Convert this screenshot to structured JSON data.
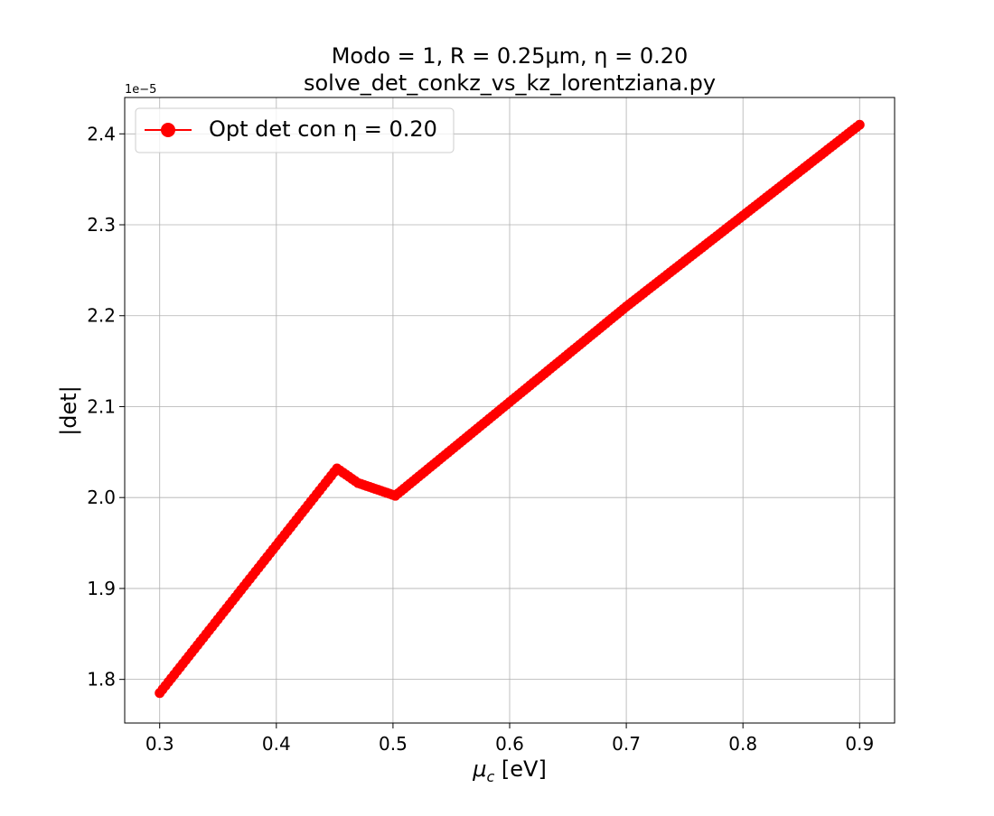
{
  "chart_data": {
    "type": "line",
    "title_line1": "Modo = 1, R = 0.25μm, η = 0.20",
    "title_line2": "solve_det_conkz_vs_kz_lorentziana.py",
    "xlabel": "μ_c [eV]",
    "xlabel_parts": {
      "mu": "μ",
      "sub": "c",
      "rest": " [eV]"
    },
    "ylabel": "|det|",
    "offset_text": "1e−5",
    "xlim": [
      0.27,
      0.93
    ],
    "ylim": [
      1.752,
      2.44
    ],
    "xticks": [
      0.3,
      0.4,
      0.5,
      0.6,
      0.7,
      0.8,
      0.9
    ],
    "xtick_labels": [
      "0.3",
      "0.4",
      "0.5",
      "0.6",
      "0.7",
      "0.8",
      "0.9"
    ],
    "yticks": [
      1.8,
      1.9,
      2.0,
      2.1,
      2.2,
      2.3,
      2.4
    ],
    "ytick_labels": [
      "1.8",
      "1.9",
      "2.0",
      "2.1",
      "2.2",
      "2.3",
      "2.4"
    ],
    "y_scale_factor": "1e-5",
    "grid": true,
    "legend_position": "top-left",
    "series": [
      {
        "name": "Opt det con η = 0.20",
        "color": "#ff0000",
        "marker": "circle",
        "anchors": [
          [
            0.3,
            1.785
          ],
          [
            0.452,
            2.032
          ],
          [
            0.47,
            2.016
          ],
          [
            0.502,
            2.002
          ],
          [
            0.6,
            2.105
          ],
          [
            0.7,
            2.21
          ],
          [
            0.8,
            2.31
          ],
          [
            0.9,
            2.41
          ]
        ]
      }
    ]
  }
}
